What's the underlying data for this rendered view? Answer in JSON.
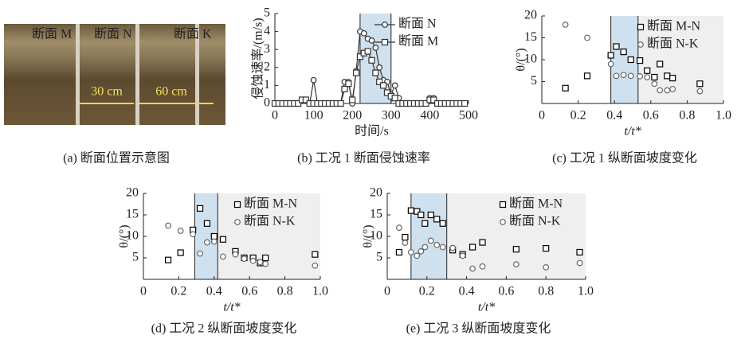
{
  "photo": {
    "labels": [
      "断面 M",
      "断面 N",
      "断面 K"
    ],
    "spans": [
      "30 cm",
      "60 cm"
    ],
    "caption": "(a) 断面位置示意图"
  },
  "chart_data": [
    {
      "type": "line",
      "caption": "(b) 工况 1 断面侵蚀速率",
      "xlabel": "时间/s",
      "ylabel": "侵蚀速率/(m/s)",
      "x": [
        0,
        10,
        20,
        30,
        40,
        50,
        60,
        70,
        80,
        90,
        100,
        110,
        120,
        130,
        140,
        150,
        160,
        170,
        180,
        190,
        200,
        210,
        220,
        230,
        240,
        250,
        260,
        270,
        280,
        290,
        300,
        310,
        320,
        330,
        340,
        350,
        360,
        370,
        380,
        390,
        400,
        410,
        420,
        430,
        440,
        450,
        460,
        470,
        480,
        490
      ],
      "series": [
        {
          "name": "断面 N",
          "color": "#333333",
          "marker": "circle",
          "values": [
            0,
            0,
            0,
            0,
            0,
            0,
            0,
            0.2,
            0.2,
            0,
            1.3,
            0,
            0,
            0,
            0,
            0,
            0,
            0,
            1.2,
            1.2,
            0,
            1.8,
            4.0,
            3.9,
            3.6,
            3.5,
            3.1,
            2.0,
            1.3,
            1.2,
            0.5,
            1.0,
            0.3,
            0,
            0,
            0,
            0,
            0,
            0,
            0,
            0.3,
            0.3,
            0,
            0,
            0,
            0,
            0,
            0,
            0,
            0
          ]
        },
        {
          "name": "断面 M",
          "color": "#333333",
          "marker": "square",
          "values": [
            0,
            0,
            0,
            0,
            0,
            0,
            0,
            0.2,
            0.2,
            0,
            0,
            0,
            0,
            0,
            0,
            0,
            0,
            0,
            0.8,
            1.1,
            0.2,
            1.7,
            2.6,
            2.8,
            2.9,
            2.4,
            1.7,
            1.2,
            1.0,
            0.6,
            0.4,
            0.3,
            0,
            0,
            0,
            0,
            0,
            0,
            0,
            0,
            0.2,
            0.2,
            0,
            0,
            0,
            0,
            0,
            0,
            0,
            0
          ]
        }
      ],
      "band": [
        220,
        300
      ],
      "band_color": "#cfe0ef",
      "xlim": [
        0,
        500
      ],
      "xticks": [
        0,
        100,
        200,
        300,
        400,
        500
      ],
      "ylim": [
        0,
        5
      ],
      "yticks": [
        0,
        1,
        2,
        3,
        4,
        5
      ],
      "legend": "upper right"
    },
    {
      "type": "scatter",
      "caption": "(c) 工况 1 纵断面坡度变化",
      "xlabel": "t/t*",
      "ylabel": "θ/(°)",
      "series": [
        {
          "name": "断面 M-N",
          "color": "#000000",
          "marker": "square",
          "x": [
            0.13,
            0.25,
            0.38,
            0.41,
            0.45,
            0.49,
            0.54,
            0.58,
            0.62,
            0.65,
            0.69,
            0.72,
            0.87
          ],
          "values": [
            3.5,
            6.3,
            11,
            13,
            11.8,
            10,
            9.8,
            7.5,
            6,
            9,
            6.3,
            5.8,
            4.5
          ]
        },
        {
          "name": "断面 N-K",
          "color": "#666666",
          "marker": "circle",
          "x": [
            0.13,
            0.25,
            0.38,
            0.41,
            0.45,
            0.49,
            0.54,
            0.58,
            0.62,
            0.65,
            0.69,
            0.72,
            0.87
          ],
          "values": [
            18,
            15,
            9,
            6.3,
            6.5,
            6.3,
            6.2,
            6,
            4.5,
            3,
            3,
            3.3,
            2.8
          ]
        }
      ],
      "band": [
        0.38,
        0.53
      ],
      "band_color": "#cfe0ef",
      "background": "#efefef",
      "xlim": [
        0,
        1
      ],
      "xticks": [
        0,
        0.2,
        0.4,
        0.6,
        0.8,
        {
          "value": 1,
          "label": "1.0"
        }
      ],
      "ylim": [
        0,
        20
      ],
      "yticks": [
        5,
        10,
        15,
        20
      ],
      "legend": "upper right"
    },
    {
      "type": "scatter",
      "caption": "(d) 工况 2 纵断面坡度变化",
      "xlabel": "t/t*",
      "ylabel": "θ/(°)",
      "series": [
        {
          "name": "断面 M-N",
          "color": "#000000",
          "marker": "square",
          "x": [
            0.14,
            0.21,
            0.28,
            0.32,
            0.36,
            0.4,
            0.45,
            0.52,
            0.57,
            0.62,
            0.66,
            0.69,
            0.97
          ],
          "values": [
            4.5,
            6.2,
            11.5,
            16.5,
            13,
            10,
            9.3,
            6.5,
            5,
            5,
            3.8,
            5,
            5.8
          ]
        },
        {
          "name": "断面 N-K",
          "color": "#666666",
          "marker": "circle",
          "x": [
            0.14,
            0.21,
            0.28,
            0.32,
            0.36,
            0.4,
            0.45,
            0.52,
            0.57,
            0.62,
            0.66,
            0.69,
            0.97
          ],
          "values": [
            12.5,
            11.3,
            10.5,
            6,
            8.6,
            8.8,
            5.3,
            5.8,
            4.8,
            4.3,
            4,
            3.6,
            3.2
          ]
        }
      ],
      "band": [
        0.29,
        0.42
      ],
      "band_color": "#cfe0ef",
      "background": "#efefef",
      "xlim": [
        0,
        1
      ],
      "xticks": [
        0,
        0.2,
        0.4,
        0.6,
        0.8,
        {
          "value": 1,
          "label": "1.0"
        }
      ],
      "ylim": [
        0,
        20
      ],
      "yticks": [
        5,
        10,
        15,
        20
      ],
      "legend": "upper right"
    },
    {
      "type": "scatter",
      "caption": "(e) 工况 3 纵断面坡度变化",
      "xlabel": "t/t*",
      "ylabel": "θ/(°)",
      "series": [
        {
          "name": "断面 M-N",
          "color": "#000000",
          "marker": "square",
          "x": [
            0.06,
            0.09,
            0.12,
            0.15,
            0.17,
            0.19,
            0.22,
            0.25,
            0.28,
            0.33,
            0.38,
            0.43,
            0.48,
            0.65,
            0.8,
            0.97
          ],
          "values": [
            6.3,
            9.8,
            16,
            15.8,
            15,
            13,
            15,
            14,
            13,
            6.8,
            5.8,
            7.5,
            8.6,
            7,
            7.2,
            6.3
          ]
        },
        {
          "name": "断面 N-K",
          "color": "#666666",
          "marker": "circle",
          "x": [
            0.06,
            0.09,
            0.12,
            0.15,
            0.17,
            0.19,
            0.22,
            0.25,
            0.28,
            0.33,
            0.38,
            0.43,
            0.48,
            0.65,
            0.8,
            0.97
          ],
          "values": [
            12,
            8.5,
            6.3,
            5.5,
            6.5,
            7.5,
            9,
            8,
            7.5,
            7.3,
            5.5,
            2.5,
            3,
            3.5,
            2.8,
            3.8
          ]
        }
      ],
      "band": [
        0.12,
        0.3
      ],
      "band_color": "#cfe0ef",
      "background": "#efefef",
      "xlim": [
        0,
        1
      ],
      "xticks": [
        0,
        0.2,
        0.4,
        0.6,
        0.8,
        {
          "value": 1,
          "label": "1.0"
        }
      ],
      "ylim": [
        0,
        20
      ],
      "yticks": [
        5,
        10,
        15,
        20
      ],
      "legend": "upper right"
    }
  ]
}
